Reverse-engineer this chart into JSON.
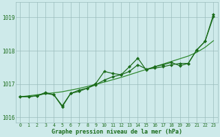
{
  "x": [
    0,
    1,
    2,
    3,
    4,
    5,
    6,
    7,
    8,
    9,
    10,
    11,
    12,
    13,
    14,
    15,
    16,
    17,
    18,
    19,
    20,
    21,
    22,
    23
  ],
  "line_straight": [
    1016.62,
    1016.65,
    1016.68,
    1016.71,
    1016.74,
    1016.77,
    1016.82,
    1016.87,
    1016.93,
    1016.99,
    1017.06,
    1017.13,
    1017.2,
    1017.28,
    1017.36,
    1017.44,
    1017.52,
    1017.6,
    1017.68,
    1017.76,
    1017.84,
    1017.95,
    1018.1,
    1018.3
  ],
  "line_jagged1": [
    1016.62,
    1016.62,
    1016.65,
    1016.75,
    1016.68,
    1016.32,
    1016.72,
    1016.82,
    1016.88,
    1017.02,
    1017.38,
    1017.32,
    1017.28,
    1017.52,
    1017.78,
    1017.42,
    1017.52,
    1017.58,
    1017.65,
    1017.55,
    1017.62,
    1018.02,
    1018.28,
    1019.08
  ],
  "line_jagged2": [
    1016.62,
    1016.62,
    1016.65,
    1016.72,
    1016.68,
    1016.35,
    1016.72,
    1016.78,
    1016.88,
    1016.98,
    1017.12,
    1017.22,
    1017.28,
    1017.38,
    1017.58,
    1017.45,
    1017.48,
    1017.52,
    1017.58,
    1017.62,
    1017.62,
    1018.02,
    1018.28,
    1019.02
  ],
  "line_color_dark": "#1a6b1a",
  "line_color_mid": "#2e882e",
  "bg_color": "#ceeaea",
  "grid_color": "#99bbbb",
  "text_color": "#1a6b1a",
  "xlabel": "Graphe pression niveau de la mer (hPa)",
  "ylim_min": 1015.85,
  "ylim_max": 1019.45,
  "yticks": [
    1016,
    1017,
    1018,
    1019
  ],
  "xticks": [
    0,
    1,
    2,
    3,
    4,
    5,
    6,
    7,
    8,
    9,
    10,
    11,
    12,
    13,
    14,
    15,
    16,
    17,
    18,
    19,
    20,
    21,
    22,
    23
  ],
  "marker_size": 2.2,
  "linewidth": 0.9
}
